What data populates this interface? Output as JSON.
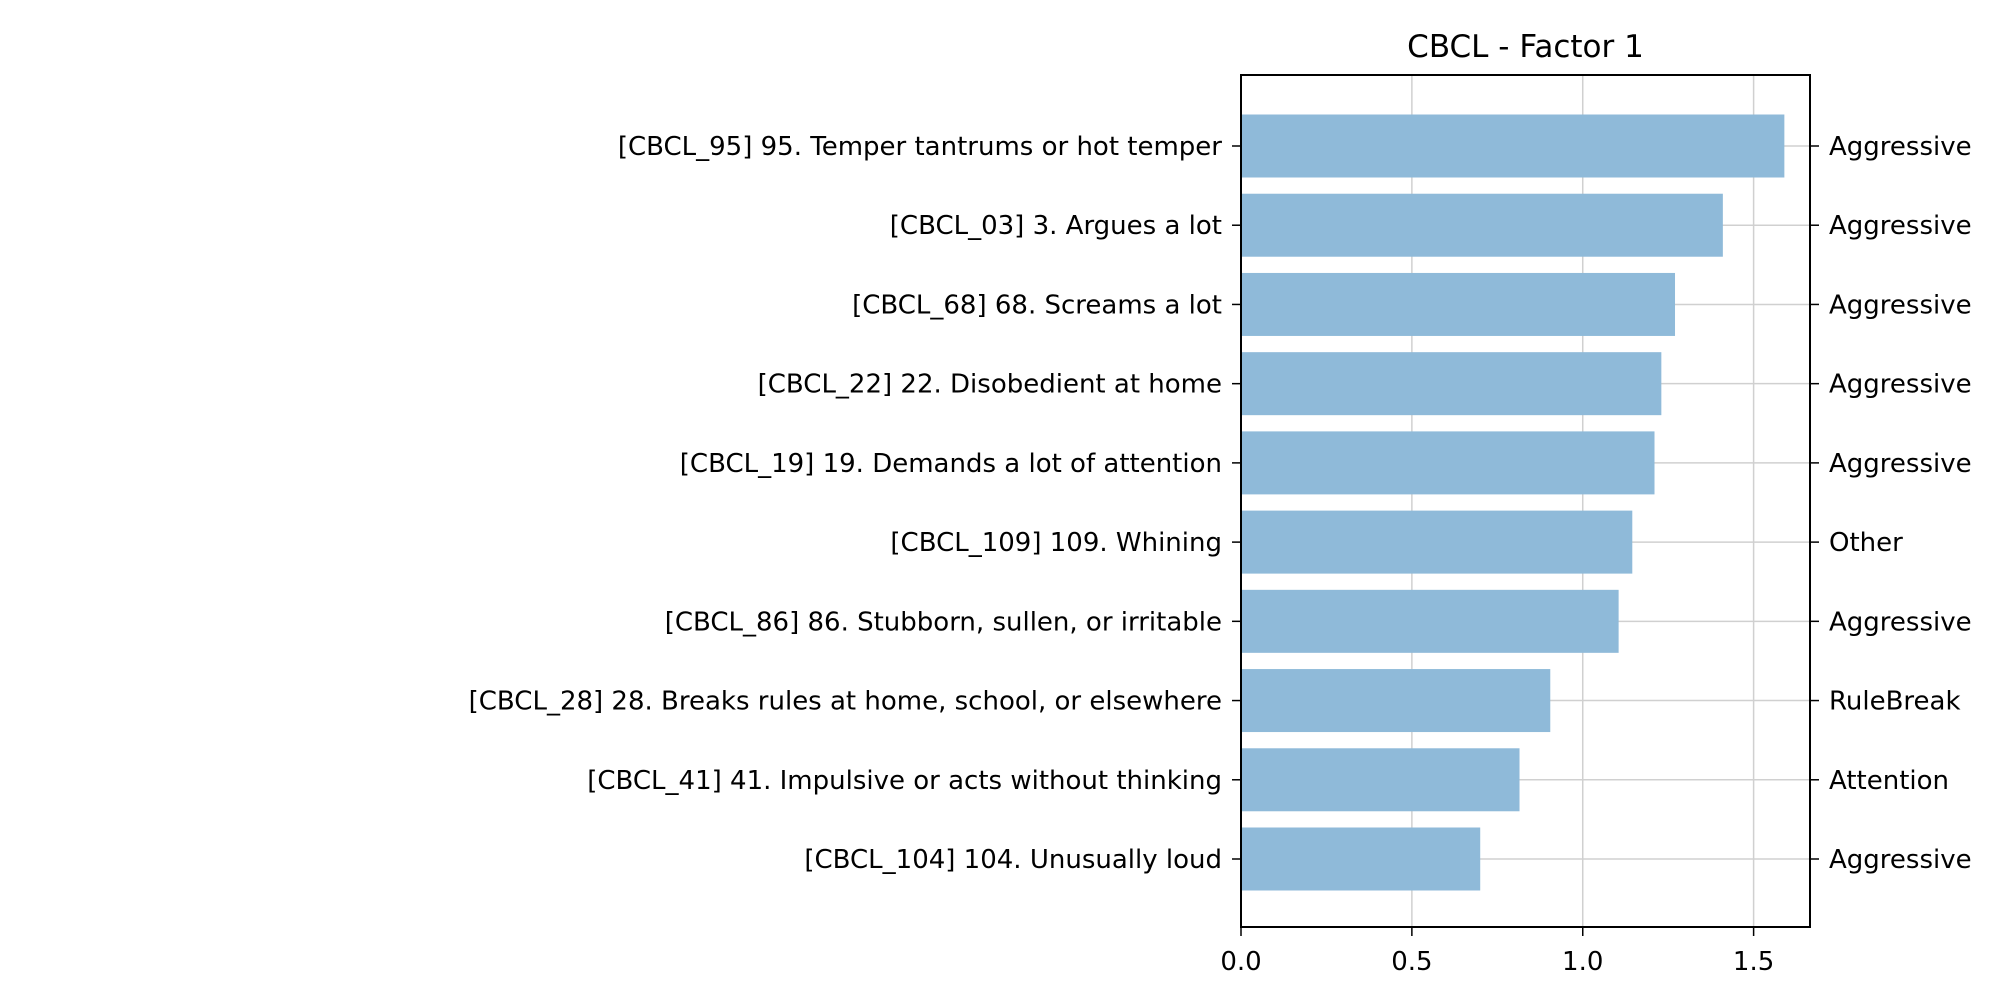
{
  "chart_data": {
    "type": "bar",
    "orientation": "horizontal",
    "title": "CBCL - Factor 1",
    "xlabel": "",
    "ylabel": "",
    "xlim": [
      0,
      1.665
    ],
    "xticks": [
      0.0,
      0.5,
      1.0,
      1.5
    ],
    "xtick_labels": [
      "0.0",
      "0.5",
      "1.0",
      "1.5"
    ],
    "grid": "x",
    "bar_color": "#8fbad9",
    "categories": [
      "[CBCL_95] 95. Temper tantrums or hot temper",
      "[CBCL_03] 3. Argues a lot",
      "[CBCL_68] 68. Screams a lot",
      "[CBCL_22] 22. Disobedient at home",
      "[CBCL_19] 19. Demands a lot of attention",
      "[CBCL_109] 109. Whining",
      "[CBCL_86] 86. Stubborn, sullen, or irritable",
      "[CBCL_28] 28. Breaks rules at home, school, or elsewhere",
      "[CBCL_41] 41. Impulsive or acts without thinking",
      "[CBCL_104] 104. Unusually loud"
    ],
    "values": [
      1.59,
      1.41,
      1.27,
      1.23,
      1.21,
      1.145,
      1.105,
      0.905,
      0.815,
      0.7
    ],
    "right_labels": [
      "Aggressive",
      "Aggressive",
      "Aggressive",
      "Aggressive",
      "Aggressive",
      "Other",
      "Aggressive",
      "RuleBreak",
      "Attention",
      "Aggressive"
    ]
  }
}
